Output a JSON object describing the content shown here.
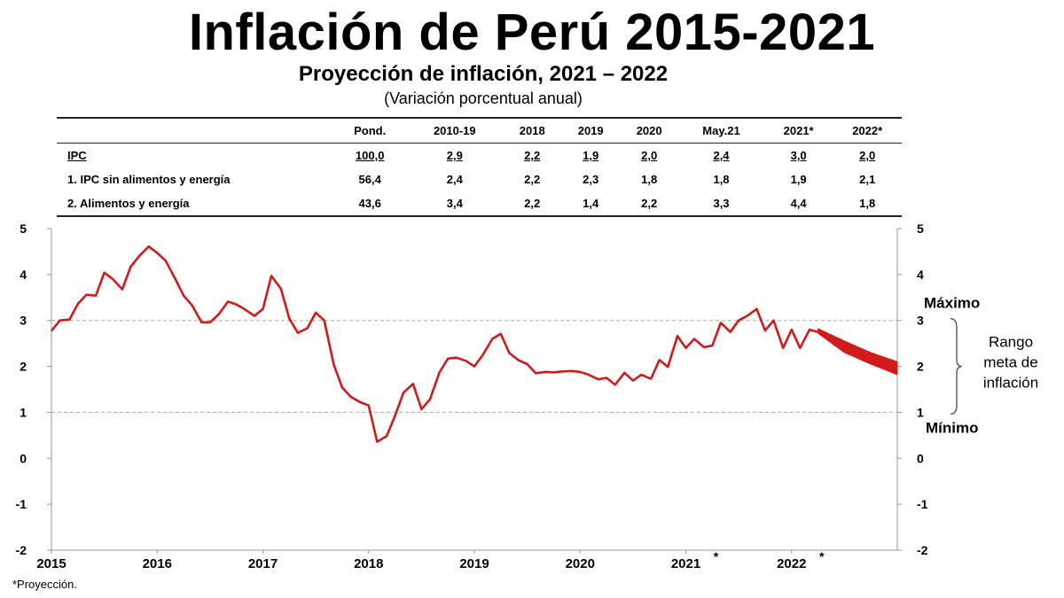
{
  "header": {
    "main_title": "Inflación de Perú 2015-2021",
    "subtitle": "Proyección de inflación, 2021 – 2022",
    "subtitle2": "(Variación porcentual anual)"
  },
  "table": {
    "columns": [
      "",
      "Pond.",
      "2010-19",
      "2018",
      "2019",
      "2020",
      "May.21",
      "2021*",
      "2022*"
    ],
    "rows": [
      [
        "IPC",
        "100,0",
        "2,9",
        "2,2",
        "1,9",
        "2,0",
        "2,4",
        "3,0",
        "2,0"
      ],
      [
        "1. IPC sin alimentos y energía",
        "56,4",
        "2,4",
        "2,2",
        "2,3",
        "1,8",
        "1,8",
        "1,9",
        "2,1"
      ],
      [
        "2. Alimentos y energía",
        "43,6",
        "3,4",
        "2,2",
        "1,4",
        "2,2",
        "3,3",
        "4,4",
        "1,8"
      ]
    ]
  },
  "chart_data": {
    "type": "line",
    "title": "",
    "xlabel": "",
    "ylabel": "",
    "xlim": [
      2015.0,
      2023.0
    ],
    "ylim": [
      -2,
      5
    ],
    "yticks": [
      "5",
      "4",
      "3",
      "2",
      "1",
      "0",
      "-1",
      "-2"
    ],
    "yticks_right": [
      "5",
      "4",
      "3",
      "2",
      "1",
      "0",
      "-1",
      "-2"
    ],
    "xtick_labels": [
      {
        "label": "2015",
        "x": 2015.0
      },
      {
        "label": "2016",
        "x": 2016.0
      },
      {
        "label": "2017",
        "x": 2017.0
      },
      {
        "label": "2018",
        "x": 2018.0
      },
      {
        "label": "2019",
        "x": 2019.0
      },
      {
        "label": "2020",
        "x": 2020.0
      },
      {
        "label": "2021",
        "x": 2021.0,
        "asterisk": "*"
      },
      {
        "label": "2022",
        "x": 2022.0,
        "asterisk": "*"
      }
    ],
    "target_range": {
      "max": 3,
      "min": 1,
      "max_label": "Máximo",
      "min_label": "Mínimo",
      "label_lines": [
        "Rango",
        "meta de",
        "inflación"
      ]
    },
    "grid": false,
    "series": [
      {
        "color": "#d11a1a",
        "x": [
          2015.0,
          2015.08,
          2015.17,
          2015.25,
          2015.33,
          2015.42,
          2015.5,
          2015.58,
          2015.67,
          2015.75,
          2015.83,
          2015.92,
          2016.0,
          2016.08,
          2016.17,
          2016.25,
          2016.33,
          2016.42,
          2016.5,
          2016.58,
          2016.67,
          2016.75,
          2016.83,
          2016.92,
          2017.0,
          2017.08,
          2017.17,
          2017.25,
          2017.33,
          2017.42,
          2017.5,
          2017.58,
          2017.67,
          2017.75,
          2017.83,
          2017.92,
          2018.0,
          2018.08,
          2018.17,
          2018.25,
          2018.33,
          2018.42,
          2018.5,
          2018.58,
          2018.67,
          2018.75,
          2018.83,
          2018.92,
          2019.0,
          2019.08,
          2019.17,
          2019.25,
          2019.33,
          2019.42,
          2019.5,
          2019.58,
          2019.67,
          2019.75,
          2019.83,
          2019.92,
          2020.0,
          2020.08,
          2020.17,
          2020.25,
          2020.33,
          2020.42,
          2020.5,
          2020.58,
          2020.67,
          2020.75,
          2020.83,
          2020.92,
          2021.0,
          2021.08,
          2021.17,
          2021.25,
          2021.33,
          2021.42,
          2021.5,
          2021.58,
          2021.67,
          2021.75,
          2021.83,
          2021.92,
          2022.0,
          2022.08,
          2022.17,
          2022.25
        ],
        "y": [
          2.77,
          3.0,
          3.02,
          3.36,
          3.56,
          3.54,
          4.04,
          3.9,
          3.68,
          4.17,
          4.4,
          4.61,
          4.47,
          4.3,
          3.91,
          3.54,
          3.33,
          2.96,
          2.96,
          3.13,
          3.41,
          3.35,
          3.24,
          3.1,
          3.25,
          3.97,
          3.69,
          3.04,
          2.73,
          2.83,
          3.17,
          3.0,
          2.04,
          1.54,
          1.34,
          1.22,
          1.15,
          0.36,
          0.48,
          0.93,
          1.43,
          1.62,
          1.07,
          1.28,
          1.87,
          2.17,
          2.19,
          2.12,
          2.0,
          2.25,
          2.6,
          2.71,
          2.29,
          2.13,
          2.05,
          1.85,
          1.88,
          1.87,
          1.89,
          1.9,
          1.88,
          1.82,
          1.72,
          1.75,
          1.6,
          1.86,
          1.69,
          1.82,
          1.73,
          2.14,
          1.99,
          2.66,
          2.4,
          2.6,
          2.42,
          2.45,
          2.95,
          2.75,
          3.0,
          3.1,
          3.25,
          2.78,
          3.0,
          2.4,
          2.8,
          2.4,
          2.8,
          2.75
        ]
      },
      {
        "name": "",
        "color": "#d11a1a",
        "band": true,
        "x": [
          2022.25,
          2022.5,
          2022.75,
          2023.0
        ],
        "upper": [
          2.82,
          2.55,
          2.3,
          2.1
        ],
        "lower": [
          2.72,
          2.3,
          2.05,
          1.82
        ]
      }
    ]
  },
  "footnote": "*Proyección."
}
